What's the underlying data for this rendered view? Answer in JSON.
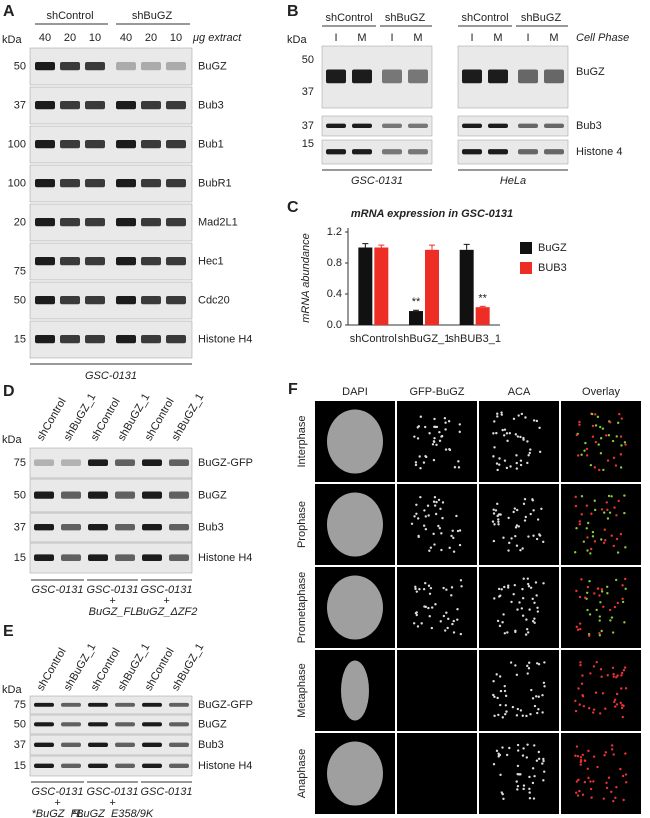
{
  "panels": {
    "a": {
      "label": "A",
      "kda": "kDa",
      "groups": [
        "shControl",
        "shBuGZ"
      ],
      "lanes": [
        "40",
        "20",
        "10",
        "40",
        "20",
        "10"
      ],
      "unit": "μg extract",
      "rows": [
        {
          "marker": "50",
          "name": "BuGZ"
        },
        {
          "marker": "37",
          "name": "Bub3"
        },
        {
          "marker": "100",
          "name": "Bub1"
        },
        {
          "marker": "100",
          "name": "BubR1"
        },
        {
          "marker": "20",
          "name": "Mad2L1"
        },
        {
          "marker": "75",
          "name": "Hec1"
        },
        {
          "marker": "50",
          "name": "Cdc20"
        },
        {
          "marker": "15",
          "name": "Histone H4"
        }
      ],
      "cell_line": "GSC-0131"
    },
    "b": {
      "label": "B",
      "kda": "kDa",
      "groups": [
        "shControl",
        "shBuGZ",
        "shControl",
        "shBuGZ"
      ],
      "lanes": [
        "I",
        "M",
        "I",
        "M",
        "I",
        "M",
        "I",
        "M"
      ],
      "lane_header": "Cell Phase",
      "markers": [
        "50",
        "37",
        "37",
        "15"
      ],
      "rows": [
        "BuGZ",
        "Bub3",
        "Histone 4"
      ],
      "cell_lines": [
        "GSC-0131",
        "HeLa"
      ]
    },
    "c": {
      "label": "C"
    },
    "d": {
      "label": "D",
      "kda": "kDa",
      "lanes": [
        "shControl",
        "shBuGZ_1",
        "shControl",
        "shBuGZ_1",
        "shControl",
        "shBuGZ_1"
      ],
      "rows": [
        {
          "marker": "75",
          "name": "BuGZ-GFP"
        },
        {
          "marker": "50",
          "name": "BuGZ"
        },
        {
          "marker": "37",
          "name": "Bub3"
        },
        {
          "marker": "15",
          "name": "Histone H4"
        }
      ],
      "groups": [
        [
          "GSC-0131"
        ],
        [
          "GSC-0131",
          "+",
          "BuGZ_FL"
        ],
        [
          "GSC-0131",
          "+",
          "BuGZ_ΔZF2"
        ]
      ]
    },
    "e": {
      "label": "E",
      "kda": "kDa",
      "lanes": [
        "shControl",
        "shBuGZ_1",
        "shControl",
        "shBuGZ_1",
        "shControl",
        "shBuGZ_1"
      ],
      "rows": [
        {
          "marker": "75",
          "name": "BuGZ-GFP"
        },
        {
          "marker": "50",
          "name": "BuGZ"
        },
        {
          "marker": "37",
          "name": "Bub3"
        },
        {
          "marker": "15",
          "name": "Histone H4"
        }
      ],
      "groups": [
        [
          "GSC-0131",
          "+",
          "*BuGZ_FL"
        ],
        [
          "GSC-0131",
          "+",
          "*BuGZ_E358/9K"
        ],
        [
          "GSC-0131"
        ]
      ]
    },
    "f": {
      "label": "F",
      "columns": [
        "DAPI",
        "GFP-BuGZ",
        "ACA",
        "Overlay"
      ],
      "column_colors": [
        "#333333",
        "#2a9d2a",
        "#e02020",
        "#333333"
      ],
      "rows": [
        "Interphase",
        "Prophase",
        "Prometaphase",
        "Metaphase",
        "Anaphase"
      ]
    }
  },
  "chart_data": {
    "type": "bar",
    "title": "mRNA expression in GSC-0131",
    "y_label": "mRNA abundance",
    "categories": [
      "shControl",
      "shBuGZ_1",
      "shBUB3_1"
    ],
    "series": [
      {
        "name": "BuGZ",
        "color": "#111111",
        "values": [
          1.0,
          0.18,
          0.97
        ],
        "errors": [
          0.05,
          0.01,
          0.07
        ]
      },
      {
        "name": "BUB3",
        "color": "#ee2d24",
        "values": [
          1.0,
          0.97,
          0.23
        ],
        "errors": [
          0.03,
          0.06,
          0.01
        ]
      }
    ],
    "ylim": [
      0,
      1.2
    ],
    "yticks": [
      {
        "value": 0,
        "label": "0.0"
      },
      0.4,
      0.8,
      1.2
    ],
    "annotations": [
      "**",
      "**"
    ]
  }
}
